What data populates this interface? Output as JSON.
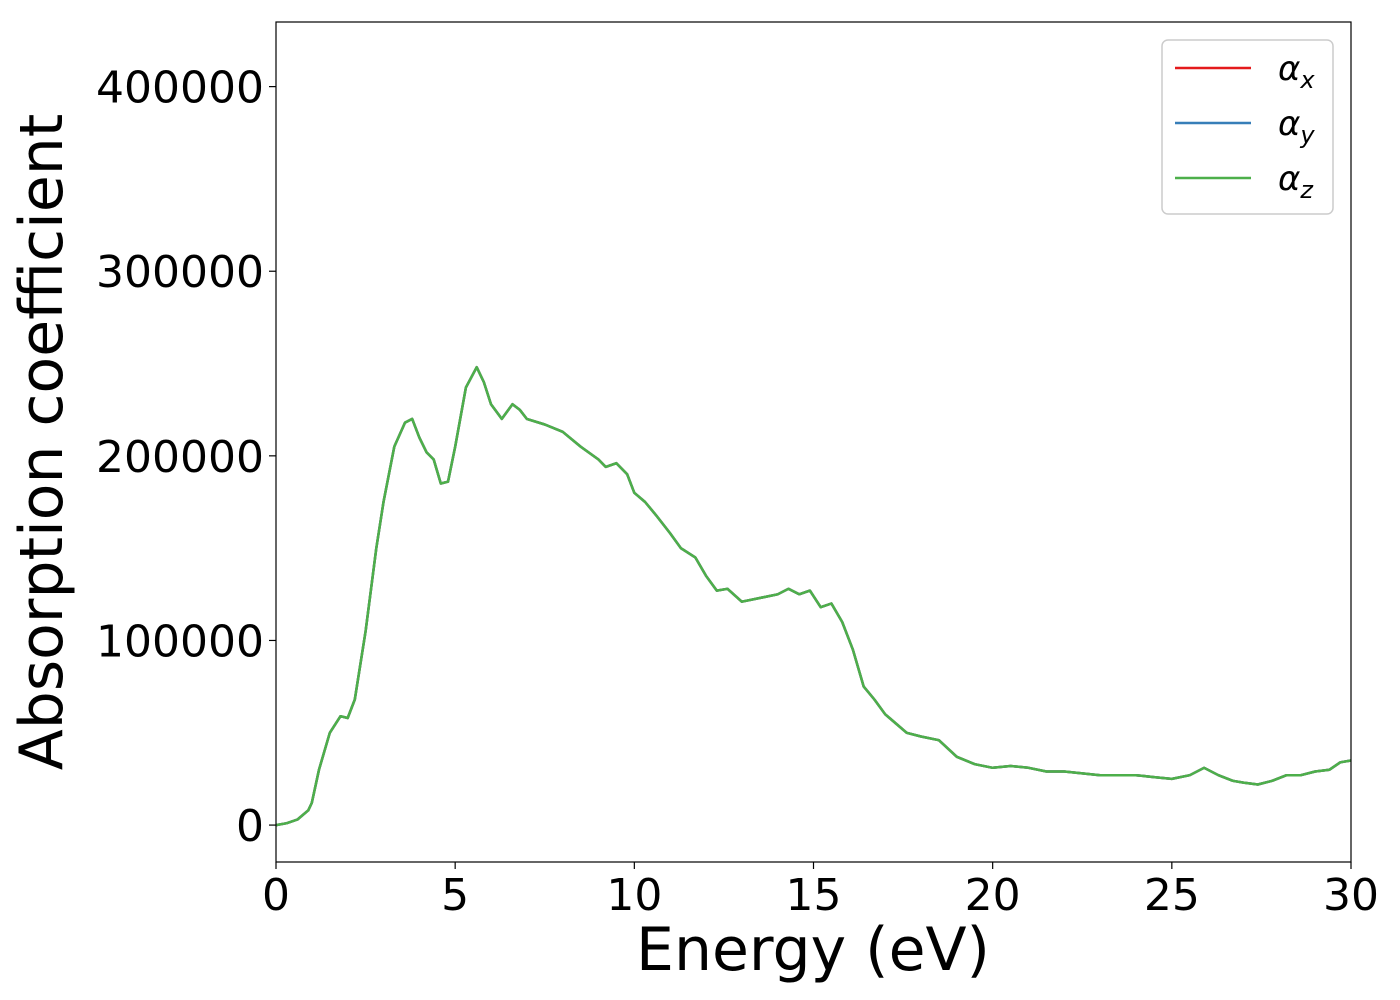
{
  "chart_data": {
    "type": "line",
    "xlabel": "Energy (eV)",
    "ylabel": "Absorption coefficient",
    "xlim": [
      0,
      30
    ],
    "ylim": [
      -20000,
      435000
    ],
    "xticks": [
      0,
      5,
      10,
      15,
      20,
      25,
      30
    ],
    "yticks": [
      0,
      100000,
      200000,
      300000,
      400000
    ],
    "grid": false,
    "legend_position": "top-right",
    "x": [
      0,
      0.3,
      0.6,
      0.9,
      1.0,
      1.2,
      1.5,
      1.8,
      2.0,
      2.2,
      2.5,
      2.8,
      3.0,
      3.3,
      3.6,
      3.8,
      4.0,
      4.2,
      4.4,
      4.6,
      4.8,
      5.0,
      5.3,
      5.6,
      5.8,
      6.0,
      6.3,
      6.6,
      6.8,
      7.0,
      7.5,
      8.0,
      8.5,
      9.0,
      9.2,
      9.5,
      9.8,
      10.0,
      10.3,
      10.6,
      11.0,
      11.3,
      11.7,
      12.0,
      12.3,
      12.6,
      13.0,
      13.5,
      14.0,
      14.3,
      14.6,
      14.9,
      15.2,
      15.5,
      15.8,
      16.1,
      16.4,
      16.7,
      17.0,
      17.3,
      17.6,
      18.0,
      18.5,
      19.0,
      19.5,
      20.0,
      20.5,
      21.0,
      21.5,
      22.0,
      22.5,
      23.0,
      23.5,
      24.0,
      24.5,
      25.0,
      25.5,
      25.9,
      26.3,
      26.7,
      27.0,
      27.4,
      27.8,
      28.2,
      28.6,
      29.0,
      29.4,
      29.7,
      30.0
    ],
    "series": [
      {
        "name": "αx",
        "color": "#e41a1c",
        "y": [
          0,
          1000,
          3000,
          8000,
          12000,
          30000,
          50000,
          59000,
          58000,
          68000,
          105000,
          150000,
          175000,
          205000,
          218000,
          220000,
          210000,
          202000,
          198000,
          185000,
          186000,
          205000,
          237000,
          248000,
          240000,
          228000,
          220000,
          228000,
          225000,
          220000,
          217000,
          213000,
          205000,
          198000,
          194000,
          196000,
          190000,
          180000,
          175000,
          168000,
          158000,
          150000,
          145000,
          135000,
          127000,
          128000,
          121000,
          123000,
          125000,
          128000,
          125000,
          127000,
          118000,
          120000,
          110000,
          95000,
          75000,
          68000,
          60000,
          55000,
          50000,
          48000,
          46000,
          37000,
          33000,
          31000,
          32000,
          31000,
          29000,
          29000,
          28000,
          27000,
          27000,
          27000,
          26000,
          25000,
          27000,
          31000,
          27000,
          24000,
          23000,
          22000,
          24000,
          27000,
          27000,
          29000,
          30000,
          34000,
          35000
        ]
      },
      {
        "name": "αy",
        "color": "#377eb8",
        "y": [
          0,
          1000,
          3000,
          8000,
          12000,
          30000,
          50000,
          59000,
          58000,
          68000,
          105000,
          150000,
          175000,
          205000,
          218000,
          220000,
          210000,
          202000,
          198000,
          185000,
          186000,
          205000,
          237000,
          248000,
          240000,
          228000,
          220000,
          228000,
          225000,
          220000,
          217000,
          213000,
          205000,
          198000,
          194000,
          196000,
          190000,
          180000,
          175000,
          168000,
          158000,
          150000,
          145000,
          135000,
          127000,
          128000,
          121000,
          123000,
          125000,
          128000,
          125000,
          127000,
          118000,
          120000,
          110000,
          95000,
          75000,
          68000,
          60000,
          55000,
          50000,
          48000,
          46000,
          37000,
          33000,
          31000,
          32000,
          31000,
          29000,
          29000,
          28000,
          27000,
          27000,
          27000,
          26000,
          25000,
          27000,
          31000,
          27000,
          24000,
          23000,
          22000,
          24000,
          27000,
          27000,
          29000,
          30000,
          34000,
          35000
        ]
      },
      {
        "name": "αz",
        "color": "#4daf4a",
        "y": [
          0,
          1000,
          3000,
          8000,
          12000,
          30000,
          50000,
          59000,
          58000,
          68000,
          105000,
          150000,
          175000,
          205000,
          218000,
          220000,
          210000,
          202000,
          198000,
          185000,
          186000,
          205000,
          237000,
          248000,
          240000,
          228000,
          220000,
          228000,
          225000,
          220000,
          217000,
          213000,
          205000,
          198000,
          194000,
          196000,
          190000,
          180000,
          175000,
          168000,
          158000,
          150000,
          145000,
          135000,
          127000,
          128000,
          121000,
          123000,
          125000,
          128000,
          125000,
          127000,
          118000,
          120000,
          110000,
          95000,
          75000,
          68000,
          60000,
          55000,
          50000,
          48000,
          46000,
          37000,
          33000,
          31000,
          32000,
          31000,
          29000,
          29000,
          28000,
          27000,
          27000,
          27000,
          26000,
          25000,
          27000,
          31000,
          27000,
          24000,
          23000,
          22000,
          24000,
          27000,
          27000,
          29000,
          30000,
          34000,
          35000
        ]
      }
    ],
    "legend_subscripts": [
      "x",
      "y",
      "z"
    ]
  }
}
